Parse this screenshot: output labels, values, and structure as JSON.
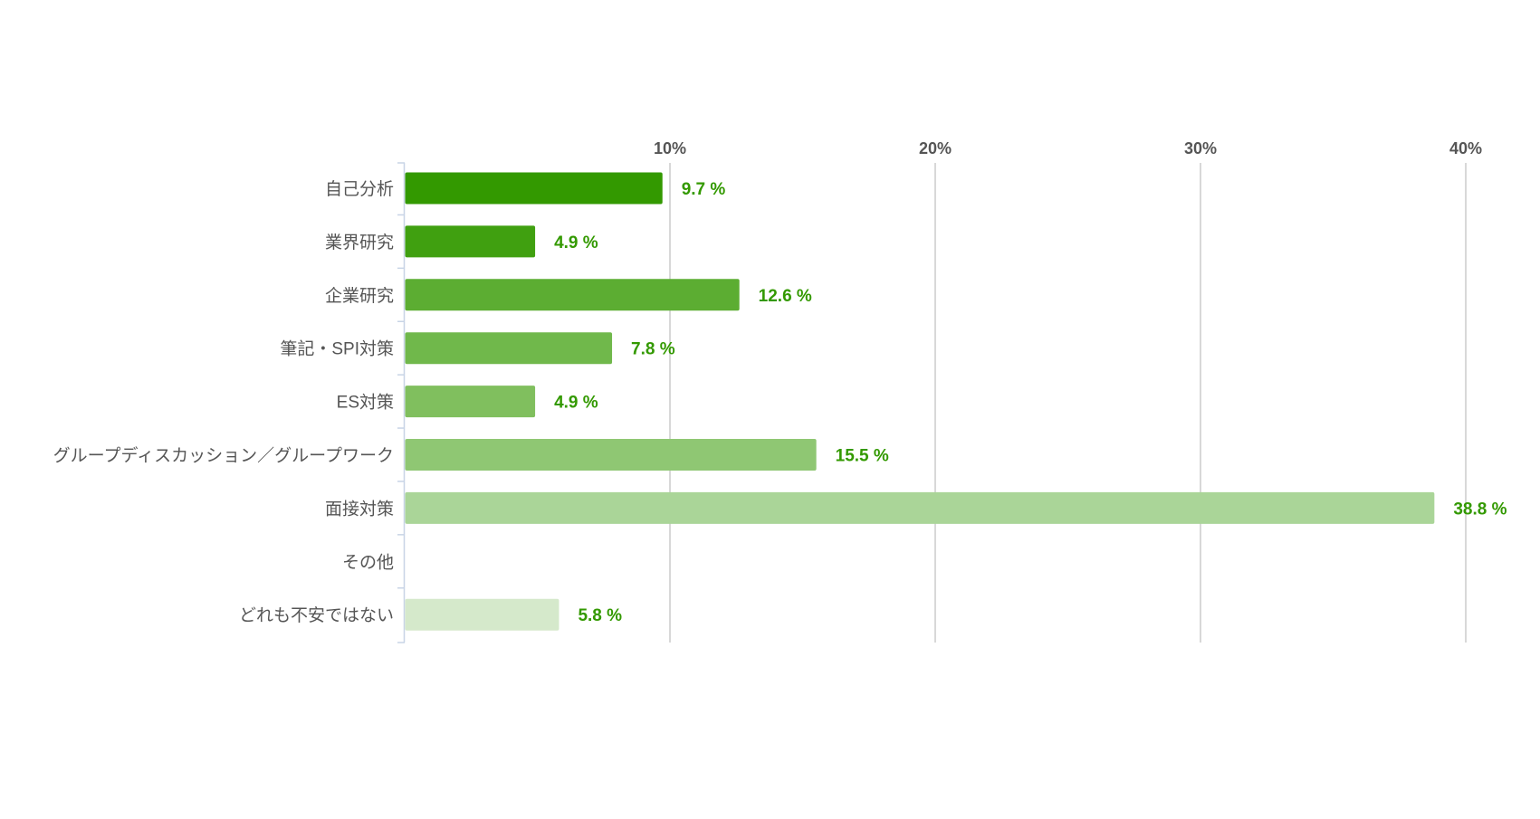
{
  "chart_data": {
    "type": "bar",
    "orientation": "horizontal",
    "categories": [
      "自己分析",
      "業界研究",
      "企業研究",
      "筆記・SPI対策",
      "ES対策",
      "グループディスカッション／グループワーク",
      "面接対策",
      "その他",
      "どれも不安ではない"
    ],
    "values": [
      9.7,
      4.9,
      12.6,
      7.8,
      4.9,
      15.5,
      38.8,
      null,
      5.8
    ],
    "value_labels": [
      "9.7 %",
      "4.9 %",
      "12.6 %",
      "7.8 %",
      "4.9 %",
      "15.5 %",
      "38.8 %",
      "",
      "5.8 %"
    ],
    "bar_colors": [
      "#339900",
      "#40A010",
      "#5CAD32",
      "#70B84B",
      "#80BF5E",
      "#8FC773",
      "#AAD598",
      "",
      "#D5E9CB"
    ],
    "label_color": "#339900",
    "xlim": [
      0,
      40
    ],
    "xticks": [
      10,
      20,
      30,
      40
    ],
    "xtick_labels": [
      "10%",
      "20%",
      "30%",
      "40%"
    ],
    "axis_position": "top",
    "grid": true,
    "grid_color": "#CCCCCC",
    "axis_line_color": "#C8D4E6"
  }
}
